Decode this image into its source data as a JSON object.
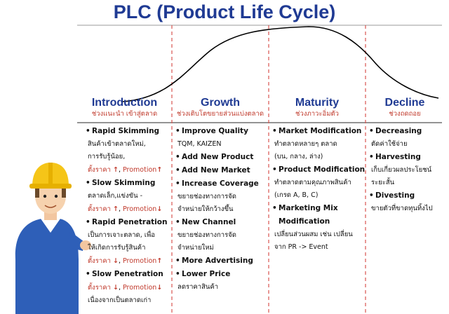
{
  "title": "PLC (Product Life Cycle)",
  "phases": [
    {
      "name": "Introduction",
      "thai": "ช่วงแนะนำ เข้าสู่ตลาด"
    },
    {
      "name": "Growth",
      "thai": "ช่วงเติบโตขยายส่วนแบ่งตลาด"
    },
    {
      "name": "Maturity",
      "thai": "ช่วงภาวะอิ่มตัว"
    },
    {
      "name": "Decline",
      "thai": "ช่วงถดถอย"
    }
  ],
  "intro": {
    "rapid_skimming": "Rapid Skimming",
    "rapid_skimming_d1": "สินค้าเข้าตลาดใหม่,",
    "rapid_skimming_d2": "การรับรู้น้อย,",
    "slow_skimming": "Slow Skimming",
    "slow_skimming_d1": "ตลาดเล็ก,แข่งขัน -",
    "rapid_penetration": "Rapid Penetration",
    "rapid_penetration_d1": "เป็นการเจาะตลาด, เพื่อ",
    "rapid_penetration_d2": "ให้เกิดการรับรู้สินค้า",
    "slow_penetration": "Slow Penetration",
    "slow_penetration_d1": "เนื่องจากเป็นตลาดเก่า",
    "price_label": "ตั้งราคา",
    "promotion_label": "Promotion"
  },
  "growth": {
    "i1": "Improve Quality",
    "i1_d1": "TQM, KAIZEN",
    "i2": "Add New Product",
    "i3": "Add New Market",
    "i4": "Increase Coverage",
    "i4_d1": "ขยายช่องทางการจัด",
    "i4_d2": "จำหน่ายให้กว้างขึ้น",
    "i5": "New Channel",
    "i5_d1": "ขยายช่องทางการจัด",
    "i5_d2": "จำหน่ายใหม่",
    "i6": "More Advertising",
    "i7": "Lower Price",
    "i7_d1": "ลดราคาสินค้า"
  },
  "maturity": {
    "i1": "Market Modification",
    "i1_d1": "ทำตลาดหลายๆ ตลาด",
    "i1_d2": "(บน, กลาง, ล่าง)",
    "i2": "Product Modification",
    "i2_d1": "ทำตลาดตามคุณภาพสินค้า",
    "i2_d2": "(เกรด A, B, C)",
    "i3": "Marketing Mix",
    "i3b": "Modification",
    "i3_d1": "เปลี่ยนส่วนผสม เช่น เปลี่ยน",
    "i3_d2": "จาก PR -> Event"
  },
  "decline": {
    "i1": "Decreasing",
    "i1_d1": "ตัดค่าใช้จ่าย",
    "i2": "Harvesting",
    "i2_d1": "เก็บเกี่ยวผลประโยชน์",
    "i2_d2": "ระยะสั้น",
    "i3": "Divesting",
    "i3_d1": "ขายตัวที่ขาดทุนทิ้งไป"
  },
  "colors": {
    "title": "#1f3a93",
    "thai": "#c0392b",
    "divider": "#d9534f"
  },
  "icons": {
    "worker": "construction-worker-illustration"
  }
}
